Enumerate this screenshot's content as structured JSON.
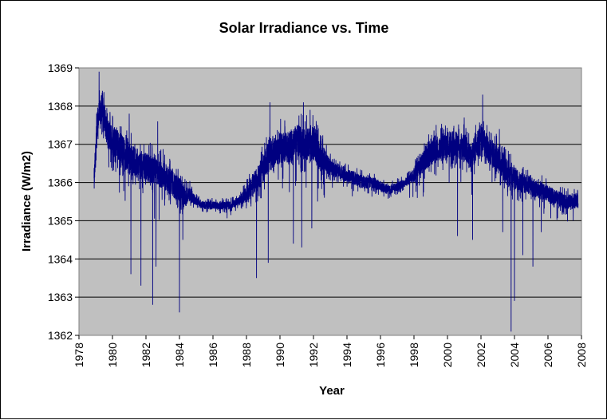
{
  "chart_data": {
    "type": "line",
    "title": "Solar Irradiance vs. Time",
    "xlabel": "Year",
    "ylabel": "Irradiance (W/m2)",
    "xlim": [
      1978,
      2008
    ],
    "ylim": [
      1362,
      1369
    ],
    "x_ticks": [
      "1978",
      "1980",
      "1982",
      "1984",
      "1986",
      "1988",
      "1990",
      "1992",
      "1994",
      "1996",
      "1998",
      "2000",
      "2002",
      "2004",
      "2006",
      "2008"
    ],
    "y_ticks": [
      "1362",
      "1363",
      "1364",
      "1365",
      "1366",
      "1367",
      "1368",
      "1369"
    ],
    "grid": true,
    "legend": "none",
    "colors": {
      "series": "#000080",
      "plot_background": "#c0c0c0",
      "gridline": "#000000"
    },
    "series": [
      {
        "name": "Solar Irradiance",
        "baseline": [
          [
            1978.9,
            1366.0
          ],
          [
            1979.1,
            1367.6
          ],
          [
            1979.4,
            1368.0
          ],
          [
            1979.7,
            1367.3
          ],
          [
            1980.0,
            1367.1
          ],
          [
            1980.5,
            1366.9
          ],
          [
            1981.0,
            1366.6
          ],
          [
            1981.5,
            1366.5
          ],
          [
            1982.0,
            1366.4
          ],
          [
            1982.5,
            1366.3
          ],
          [
            1983.0,
            1366.2
          ],
          [
            1983.5,
            1366.0
          ],
          [
            1984.0,
            1365.8
          ],
          [
            1984.3,
            1365.6
          ],
          [
            1984.6,
            1365.7
          ],
          [
            1985.0,
            1365.5
          ],
          [
            1985.5,
            1365.4
          ],
          [
            1986.0,
            1365.4
          ],
          [
            1986.5,
            1365.4
          ],
          [
            1987.0,
            1365.4
          ],
          [
            1987.5,
            1365.5
          ],
          [
            1988.0,
            1365.7
          ],
          [
            1988.5,
            1366.0
          ],
          [
            1989.0,
            1366.4
          ],
          [
            1989.5,
            1366.8
          ],
          [
            1990.0,
            1366.9
          ],
          [
            1990.5,
            1366.9
          ],
          [
            1991.0,
            1367.1
          ],
          [
            1991.5,
            1367.0
          ],
          [
            1992.0,
            1367.0
          ],
          [
            1992.5,
            1366.6
          ],
          [
            1993.0,
            1366.4
          ],
          [
            1993.5,
            1366.3
          ],
          [
            1994.0,
            1366.2
          ],
          [
            1994.5,
            1366.1
          ],
          [
            1995.0,
            1366.0
          ],
          [
            1995.5,
            1366.0
          ],
          [
            1996.0,
            1365.9
          ],
          [
            1996.5,
            1365.8
          ],
          [
            1997.0,
            1365.9
          ],
          [
            1997.5,
            1366.0
          ],
          [
            1998.0,
            1366.2
          ],
          [
            1998.5,
            1366.5
          ],
          [
            1999.0,
            1366.8
          ],
          [
            1999.5,
            1366.9
          ],
          [
            2000.0,
            1367.0
          ],
          [
            2000.5,
            1367.0
          ],
          [
            2001.0,
            1366.9
          ],
          [
            2001.5,
            1366.7
          ],
          [
            2002.0,
            1367.2
          ],
          [
            2002.5,
            1366.8
          ],
          [
            2003.0,
            1366.6
          ],
          [
            2003.5,
            1366.3
          ],
          [
            2004.0,
            1366.1
          ],
          [
            2004.5,
            1366.0
          ],
          [
            2005.0,
            1365.9
          ],
          [
            2005.5,
            1365.8
          ],
          [
            2006.0,
            1365.7
          ],
          [
            2006.5,
            1365.6
          ],
          [
            2007.0,
            1365.5
          ],
          [
            2007.5,
            1365.5
          ],
          [
            2007.8,
            1365.5
          ]
        ],
        "noise_amplitude": [
          [
            1978.9,
            0.5
          ],
          [
            1980.0,
            0.6
          ],
          [
            1984.0,
            0.5
          ],
          [
            1985.0,
            0.15
          ],
          [
            1987.5,
            0.15
          ],
          [
            1989.0,
            0.6
          ],
          [
            1992.5,
            0.6
          ],
          [
            1993.0,
            0.3
          ],
          [
            1997.5,
            0.15
          ],
          [
            1999.0,
            0.5
          ],
          [
            2003.5,
            0.5
          ],
          [
            2005.0,
            0.35
          ],
          [
            2007.8,
            0.25
          ]
        ],
        "dips": [
          [
            1981.1,
            1363.6
          ],
          [
            1981.7,
            1363.3
          ],
          [
            1982.4,
            1362.8
          ],
          [
            1982.6,
            1363.8
          ],
          [
            1984.0,
            1362.6
          ],
          [
            1984.2,
            1364.5
          ],
          [
            1988.6,
            1363.5
          ],
          [
            1989.3,
            1363.9
          ],
          [
            1990.8,
            1364.4
          ],
          [
            1991.3,
            1364.3
          ],
          [
            1991.9,
            1364.8
          ],
          [
            2000.6,
            1364.6
          ],
          [
            2001.0,
            1364.4
          ],
          [
            2001.5,
            1364.5
          ],
          [
            2003.3,
            1364.7
          ],
          [
            2003.8,
            1362.1
          ],
          [
            2004.0,
            1362.9
          ],
          [
            2004.5,
            1364.1
          ],
          [
            2005.1,
            1363.8
          ],
          [
            2005.6,
            1364.7
          ]
        ],
        "peaks": [
          [
            1979.2,
            1368.9
          ],
          [
            1979.4,
            1368.4
          ],
          [
            1981.0,
            1367.8
          ],
          [
            1982.7,
            1367.6
          ],
          [
            1989.4,
            1368.1
          ],
          [
            1991.4,
            1368.1
          ],
          [
            1991.8,
            1367.9
          ],
          [
            2001.0,
            1367.7
          ],
          [
            2002.1,
            1368.3
          ],
          [
            2003.1,
            1367.4
          ]
        ]
      }
    ]
  }
}
